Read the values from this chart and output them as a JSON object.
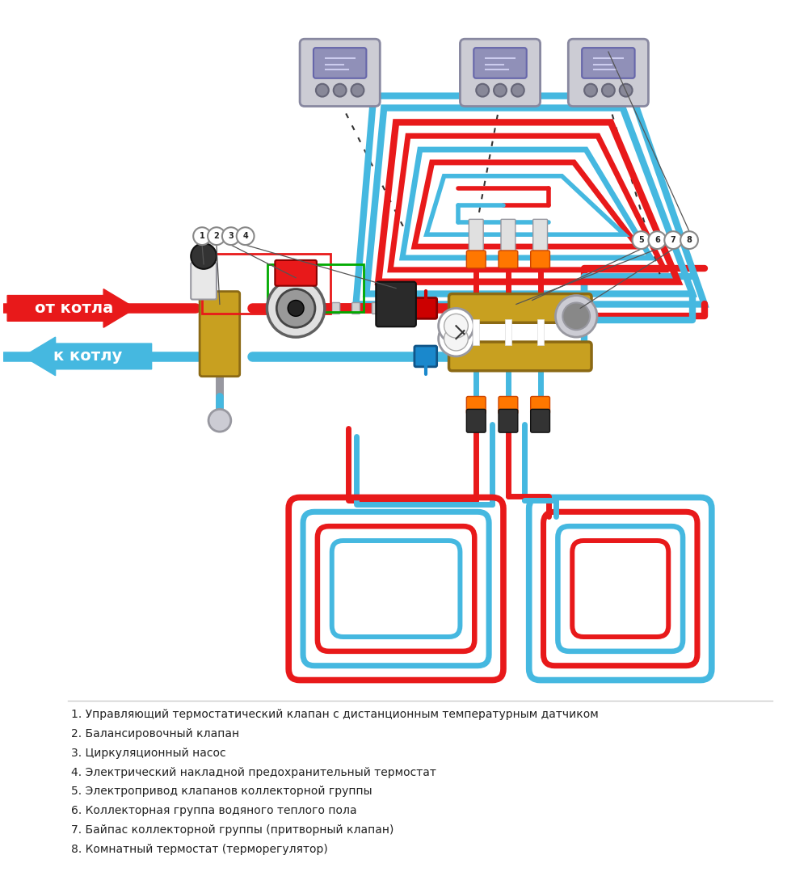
{
  "bg_color": "#ffffff",
  "red_pipe": "#e8191a",
  "blue_pipe": "#45b8e0",
  "gold": "#c8a020",
  "gray": "#9898a0",
  "light_gray": "#ccccd4",
  "legend_items": [
    "1. Управляющий термостатический клапан с дистанционным температурным датчиком",
    "2. Балансировочный клапан",
    "3. Циркуляционный насос",
    "4. Электрический накладной предохранительный термостат",
    "5. Электропривод клапанов коллекторной группы",
    "6. Коллекторная группа водяного теплого пола",
    "7. Байпас коллекторной группы (притворный клапан)",
    "8. Комнатный термостат (терморегулятор)"
  ],
  "from_boiler_text": "от котла",
  "to_boiler_text": "к котлу"
}
